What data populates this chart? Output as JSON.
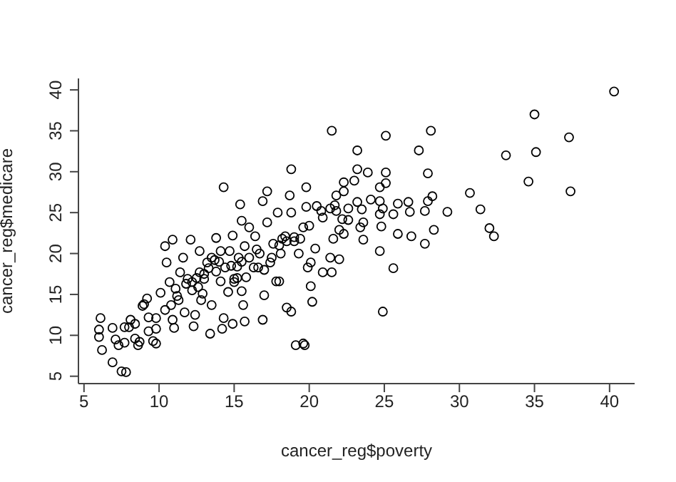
{
  "chart_data": {
    "type": "scatter",
    "xlabel": "cancer_reg$poverty",
    "ylabel": "cancer_reg$medicare",
    "xlim": [
      4.63,
      41.67
    ],
    "ylim": [
      4.1,
      41.4
    ],
    "xticks": [
      5,
      10,
      15,
      20,
      25,
      30,
      35,
      40
    ],
    "yticks": [
      5,
      10,
      15,
      20,
      25,
      30,
      35,
      40
    ],
    "marker": "circle",
    "grid": false,
    "legend": false,
    "series": [
      {
        "color": "#000000",
        "x": [
          6.1,
          6.0,
          6.0,
          6.2,
          6.9,
          7.1,
          7.3,
          6.9,
          7.5,
          7.8,
          7.7,
          7.7,
          8.0,
          8.1,
          8.4,
          8.4,
          8.6,
          8.7,
          8.9,
          9.0,
          9.2,
          9.3,
          9.3,
          9.6,
          9.8,
          9.8,
          9.8,
          10.1,
          10.4,
          10.4,
          10.5,
          10.7,
          10.8,
          10.9,
          10.9,
          11.0,
          11.1,
          11.2,
          11.3,
          11.4,
          11.6,
          11.7,
          11.9,
          12.1,
          12.2,
          12.3,
          12.4,
          12.6,
          12.7,
          12.7,
          12.8,
          12.9,
          13.0,
          13.2,
          13.4,
          13.5,
          13.7,
          13.8,
          14.1,
          14.1,
          14.3,
          14.3,
          14.2,
          14.4,
          14.6,
          14.7,
          14.9,
          14.9,
          15.0,
          15.2,
          15.3,
          15.4,
          15.5,
          15.5,
          15.6,
          15.7,
          15.7,
          15.8,
          16.0,
          16.0,
          16.3,
          16.4,
          16.6,
          16.7,
          16.9,
          16.9,
          17.0,
          17.2,
          17.2,
          17.4,
          17.6,
          17.8,
          17.9,
          18.0,
          18.1,
          18.2,
          18.4,
          18.5,
          18.7,
          18.8,
          18.8,
          18.8,
          19.0,
          19.1,
          19.3,
          19.4,
          19.6,
          19.6,
          19.7,
          19.8,
          19.8,
          19.9,
          20.1,
          20.1,
          20.2,
          20.4,
          20.8,
          20.9,
          20.9,
          21.4,
          21.4,
          21.5,
          21.6,
          21.8,
          22.0,
          22.2,
          22.3,
          23.2,
          23.2,
          23.9,
          23.0,
          25.1,
          25.1,
          25.1,
          24.7,
          24.7,
          24.9,
          24.7,
          24.8,
          24.7,
          24.9,
          25.6,
          25.9,
          25.6,
          25.9,
          26.6,
          26.7,
          26.8,
          27.3,
          27.7,
          27.7,
          27.9,
          28.1,
          27.9,
          28.2,
          28.3,
          29.2,
          30.7,
          31.4,
          32.0,
          32.3,
          33.1,
          34.6,
          35.0,
          35.1,
          37.3,
          37.4,
          40.3,
          22.0,
          22.3,
          22.6,
          22.6,
          22.3,
          23.2,
          23.4,
          23.6,
          23.6,
          23.5,
          24.1,
          21.5,
          21.7,
          21.8,
          13.0,
          13.3,
          12.5,
          14.0,
          15.2,
          15.0,
          15.5,
          14.8,
          13.8,
          16.5,
          17.0,
          17.5,
          18.0,
          18.5,
          19.0,
          20.0,
          20.5,
          11.8,
          12.2,
          13.5
        ],
        "values": [
          12.1,
          10.7,
          9.8,
          8.2,
          10.9,
          9.5,
          8.8,
          6.7,
          5.6,
          5.5,
          9.1,
          11.0,
          11.0,
          11.9,
          11.4,
          9.6,
          8.8,
          9.2,
          13.6,
          13.8,
          14.5,
          12.2,
          10.5,
          9.3,
          10.8,
          12.1,
          9.0,
          15.2,
          20.9,
          13.1,
          18.9,
          16.5,
          13.7,
          21.7,
          11.9,
          10.9,
          15.7,
          14.8,
          14.3,
          17.7,
          19.5,
          12.8,
          16.9,
          21.7,
          15.5,
          11.1,
          12.5,
          15.9,
          20.3,
          17.7,
          14.3,
          15.1,
          16.9,
          18.9,
          10.2,
          13.7,
          19.2,
          21.9,
          16.6,
          20.3,
          28.1,
          12.1,
          10.8,
          18.3,
          15.3,
          20.3,
          22.2,
          11.4,
          16.9,
          18.4,
          19.5,
          26.0,
          24.0,
          15.4,
          13.7,
          11.7,
          20.9,
          17.1,
          23.2,
          19.5,
          18.3,
          22.1,
          18.3,
          20.0,
          11.9,
          26.4,
          14.9,
          27.6,
          23.8,
          18.9,
          21.2,
          16.6,
          25.0,
          16.6,
          20.0,
          21.8,
          22.1,
          13.4,
          27.1,
          30.3,
          12.9,
          25.0,
          21.5,
          8.8,
          20.0,
          21.8,
          23.2,
          9.0,
          8.8,
          25.7,
          28.1,
          18.3,
          18.9,
          16.0,
          14.1,
          20.6,
          25.2,
          24.4,
          17.7,
          25.5,
          19.5,
          35.0,
          21.8,
          27.1,
          22.9,
          24.2,
          28.7,
          32.6,
          30.3,
          29.9,
          28.9,
          34.4,
          29.9,
          28.6,
          28.1,
          26.4,
          25.5,
          24.8,
          23.3,
          20.3,
          12.9,
          18.2,
          22.4,
          24.8,
          26.1,
          26.3,
          25.1,
          22.1,
          32.6,
          21.2,
          25.2,
          29.8,
          35.0,
          26.4,
          27.0,
          22.9,
          25.1,
          27.4,
          25.4,
          23.1,
          22.1,
          32.0,
          28.8,
          37.0,
          32.4,
          34.2,
          27.6,
          39.8,
          19.3,
          22.4,
          24.1,
          25.5,
          27.6,
          26.3,
          23.2,
          21.7,
          23.8,
          25.4,
          26.6,
          17.7,
          25.9,
          25.2,
          17.5,
          18.2,
          17.0,
          19.0,
          17.0,
          16.5,
          19.0,
          18.5,
          17.8,
          20.5,
          18.0,
          19.5,
          21.0,
          21.5,
          22.0,
          23.4,
          25.8,
          16.3,
          16.5,
          19.5
        ]
      }
    ]
  }
}
